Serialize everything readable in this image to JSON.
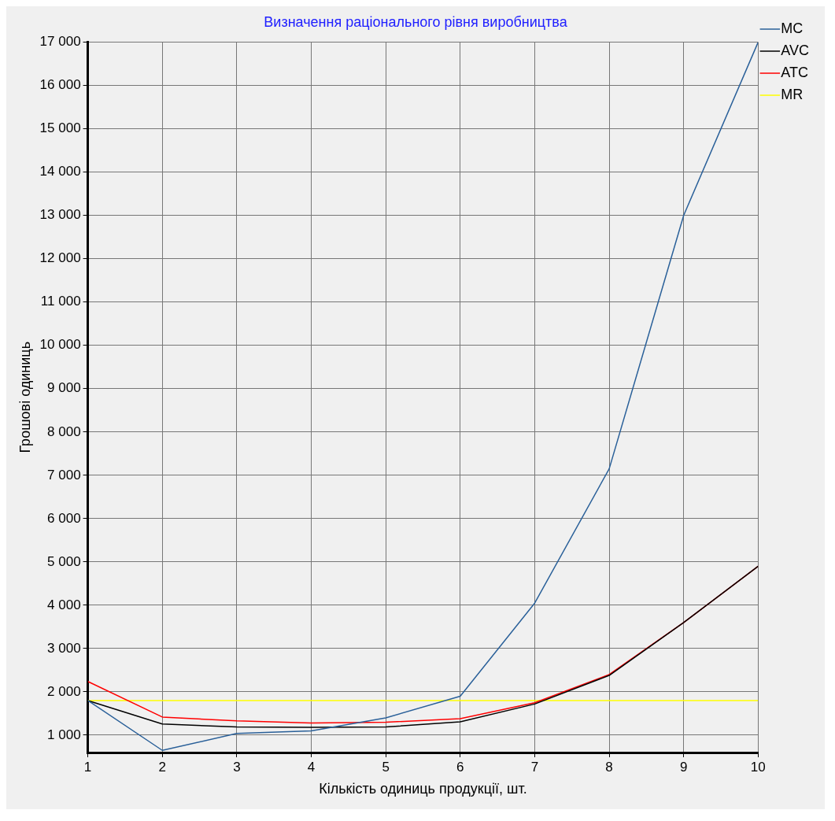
{
  "chart_data": {
    "type": "line",
    "title": "Визначення раціонального рівня виробництва",
    "xlabel": "Кількість одиниць продукції, шт.",
    "ylabel": "Грошові одиниць",
    "x": [
      1,
      2,
      3,
      4,
      5,
      6,
      7,
      8,
      9,
      10
    ],
    "series": [
      {
        "name": "MC",
        "color": "#2a6099",
        "values": [
          1800,
          650,
          1040,
          1100,
          1400,
          1900,
          4050,
          7150,
          13000,
          17000
        ]
      },
      {
        "name": "AVC",
        "color": "#000000",
        "values": [
          1800,
          1260,
          1190,
          1180,
          1190,
          1310,
          1720,
          2380,
          3600,
          4900
        ]
      },
      {
        "name": "ATC",
        "color": "#ff0000",
        "values": [
          2240,
          1420,
          1330,
          1280,
          1300,
          1380,
          1750,
          2400,
          3600,
          4900
        ]
      },
      {
        "name": "MR",
        "color": "#ffff00",
        "values": [
          1800,
          1800,
          1800,
          1800,
          1800,
          1800,
          1800,
          1800,
          1800,
          1800
        ]
      }
    ],
    "xlim": [
      1,
      10
    ],
    "xticks": [
      1,
      2,
      3,
      4,
      5,
      6,
      7,
      8,
      9,
      10
    ],
    "ylim": [
      600,
      17000
    ],
    "yticks": [
      {
        "value": 1000,
        "label": "1 000"
      },
      {
        "value": 2000,
        "label": "2 000"
      },
      {
        "value": 3000,
        "label": "3 000"
      },
      {
        "value": 4000,
        "label": "4 000"
      },
      {
        "value": 5000,
        "label": "5 000"
      },
      {
        "value": 6000,
        "label": "6 000"
      },
      {
        "value": 7000,
        "label": "7 000"
      },
      {
        "value": 8000,
        "label": "8 000"
      },
      {
        "value": 9000,
        "label": "9 000"
      },
      {
        "value": 10000,
        "label": "10 000"
      },
      {
        "value": 11000,
        "label": "11 000"
      },
      {
        "value": 12000,
        "label": "12 000"
      },
      {
        "value": 13000,
        "label": "13 000"
      },
      {
        "value": 14000,
        "label": "14 000"
      },
      {
        "value": 15000,
        "label": "15 000"
      },
      {
        "value": 16000,
        "label": "16 000"
      },
      {
        "value": 17000,
        "label": "17 000"
      }
    ],
    "grid": true,
    "legend": "top right",
    "marker": "none",
    "line_style": "solid"
  }
}
